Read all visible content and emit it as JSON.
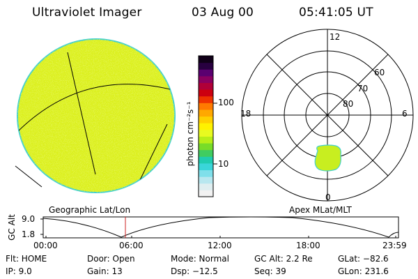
{
  "header": {
    "title": "Ultraviolet Imager",
    "date": "03 Aug 00",
    "time": "05:41:05 UT"
  },
  "left_image": {
    "label": "Geographic Lat/Lon"
  },
  "colorbar": {
    "unit_label": "photon cm⁻²s⁻¹",
    "ticks": [
      "100",
      "10"
    ],
    "colors": [
      "#f2f2f2",
      "#dfeef0",
      "#b8e7ef",
      "#7fdfea",
      "#3ad6d9",
      "#20ccb0",
      "#40cc60",
      "#78dc28",
      "#b8ee18",
      "#e8fa20",
      "#fff200",
      "#ffd000",
      "#ffa800",
      "#ff7a00",
      "#ee3300",
      "#cc0010",
      "#b00038",
      "#8a0060",
      "#5a0070",
      "#280040",
      "#100018"
    ]
  },
  "polar": {
    "label": "Apex MLat/MLT",
    "mlt_labels": {
      "top": "12",
      "left": "18",
      "right": "6",
      "bottom": "0"
    },
    "lat_labels": [
      "60",
      "70",
      "80"
    ]
  },
  "timeline": {
    "axis_label": "GC Alt",
    "y_max": "9.0",
    "y_min": "1.8",
    "x_ticks": [
      "00:00",
      "06:00",
      "12:00",
      "18:00",
      "23:59"
    ],
    "marker_color": "#cc2020"
  },
  "info": {
    "col1": [
      "Flt: HOME",
      "IP:  9.0"
    ],
    "col2": [
      "Door: Open",
      "Gain: 13"
    ],
    "col3": [
      "Mode: Normal",
      "Dsp:  −12.5"
    ],
    "col4": [
      "GC Alt: 2.2 Re",
      "Seq: 39"
    ],
    "col5": [
      "GLat: −82.6",
      "GLon: 231.6"
    ]
  },
  "colors": {
    "image_fill": "#dcf020",
    "image_rim": "#40d0d0",
    "oval_fill": "#c8ee20"
  }
}
